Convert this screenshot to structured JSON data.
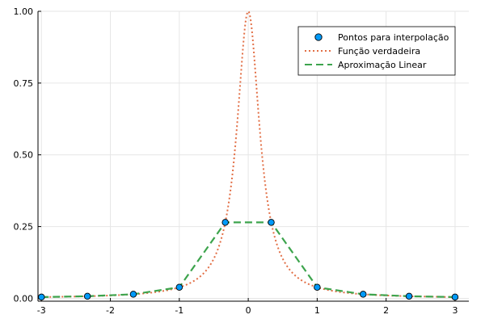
{
  "chart_data": {
    "type": "line",
    "title": "",
    "xlabel": "",
    "ylabel": "",
    "xlim": [
      -3.05,
      3.2
    ],
    "ylim": [
      -0.01,
      1.0
    ],
    "grid": true,
    "legend_position": "top-right",
    "x_ticks": [
      {
        "value": -3,
        "label": "-3"
      },
      {
        "value": -2,
        "label": "-2"
      },
      {
        "value": -1,
        "label": "-1"
      },
      {
        "value": 0,
        "label": "0"
      },
      {
        "value": 1,
        "label": "1"
      },
      {
        "value": 2,
        "label": "2"
      },
      {
        "value": 3,
        "label": "3"
      }
    ],
    "y_ticks": [
      {
        "value": 0.0,
        "label": "0.00"
      },
      {
        "value": 0.25,
        "label": "0.25"
      },
      {
        "value": 0.5,
        "label": "0.50"
      },
      {
        "value": 0.75,
        "label": "0.75"
      },
      {
        "value": 1.0,
        "label": "1.00"
      }
    ],
    "series": [
      {
        "name": "Pontos para interpolação",
        "kind": "scatter",
        "color": "#009af9",
        "x": [
          -3.0,
          -2.333,
          -1.667,
          -1.0,
          -0.333,
          0.333,
          1.0,
          1.667,
          2.333,
          3.0
        ],
        "y": [
          0.0044,
          0.0073,
          0.0142,
          0.0385,
          0.2647,
          0.2647,
          0.0385,
          0.0142,
          0.0073,
          0.0044
        ]
      },
      {
        "name": "Função verdadeira",
        "kind": "line",
        "style": "dotted",
        "color": "#e26f46",
        "function": "1/(1+25x^2)",
        "x_range": [
          -3,
          3
        ]
      },
      {
        "name": "Aproximação Linear",
        "kind": "line",
        "style": "dashed",
        "color": "#3da44d",
        "x": [
          -3.0,
          -2.333,
          -1.667,
          -1.0,
          -0.333,
          0.333,
          1.0,
          1.667,
          2.333,
          3.0
        ],
        "y": [
          0.0044,
          0.0073,
          0.0142,
          0.0385,
          0.2647,
          0.2647,
          0.0385,
          0.0142,
          0.0073,
          0.0044
        ]
      }
    ]
  }
}
